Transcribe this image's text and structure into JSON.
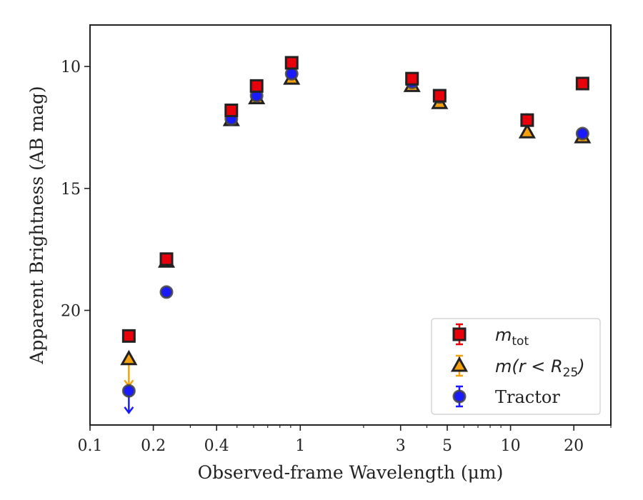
{
  "chart_data": {
    "type": "scatter",
    "xlabel": "Observed-frame Wavelength (μm)",
    "ylabel": "Apparent Brightness (AB mag)",
    "x_scale": "log",
    "xlim": [
      0.1,
      30
    ],
    "ylim": [
      24.7,
      8.3
    ],
    "y_inverted": true,
    "x_ticks": [
      {
        "value": 0.1,
        "label": "0.1"
      },
      {
        "value": 0.2,
        "label": "0.2"
      },
      {
        "value": 0.4,
        "label": "0.4"
      },
      {
        "value": 1,
        "label": "1"
      },
      {
        "value": 3,
        "label": "3"
      },
      {
        "value": 5,
        "label": "5"
      },
      {
        "value": 10,
        "label": "10"
      },
      {
        "value": 20,
        "label": "20"
      }
    ],
    "y_ticks": [
      {
        "value": 10,
        "label": "10"
      },
      {
        "value": 15,
        "label": "15"
      },
      {
        "value": 20,
        "label": "20"
      }
    ],
    "grid": false,
    "legend_position": "lower-right",
    "series": [
      {
        "name": "m_tot",
        "marker": "square",
        "face_color": "#e8000b",
        "edge_color": "#222222",
        "x": [
          0.153,
          0.231,
          0.47,
          0.62,
          0.91,
          3.4,
          4.6,
          12.0,
          22.0
        ],
        "y": [
          21.05,
          17.9,
          11.8,
          10.8,
          9.85,
          10.5,
          11.2,
          12.2,
          10.7
        ]
      },
      {
        "name": "m(r<R25)",
        "marker": "triangle",
        "face_color": "#f5a00e",
        "edge_color": "#222222",
        "x": [
          0.153,
          0.231,
          0.47,
          0.62,
          0.91,
          3.4,
          4.6,
          12.0,
          22.0
        ],
        "y": [
          22.0,
          18.0,
          12.2,
          11.3,
          10.5,
          10.8,
          11.5,
          12.7,
          12.9
        ],
        "upper_limit_x": [
          0.153
        ],
        "upper_limit_to": [
          23.1
        ]
      },
      {
        "name": "Tractor",
        "marker": "circle",
        "face_color": "#1a1aff",
        "edge_color": "#444444",
        "x": [
          0.153,
          0.231,
          0.47,
          0.62,
          0.91,
          3.4,
          4.6,
          12.0,
          22.0
        ],
        "y": [
          23.3,
          19.25,
          12.15,
          11.2,
          10.3,
          10.65,
          11.25,
          12.2,
          12.75
        ],
        "upper_limit_x": [
          0.153
        ],
        "upper_limit_to": [
          24.2
        ]
      }
    ],
    "legend": {
      "entries": [
        {
          "prefix": "m",
          "sub": "tot",
          "suffix": ""
        },
        {
          "prefix": "m(r < R",
          "sub": "25",
          "suffix": ")"
        },
        {
          "prefix": "Tractor",
          "sub": "",
          "suffix": ""
        }
      ]
    }
  }
}
